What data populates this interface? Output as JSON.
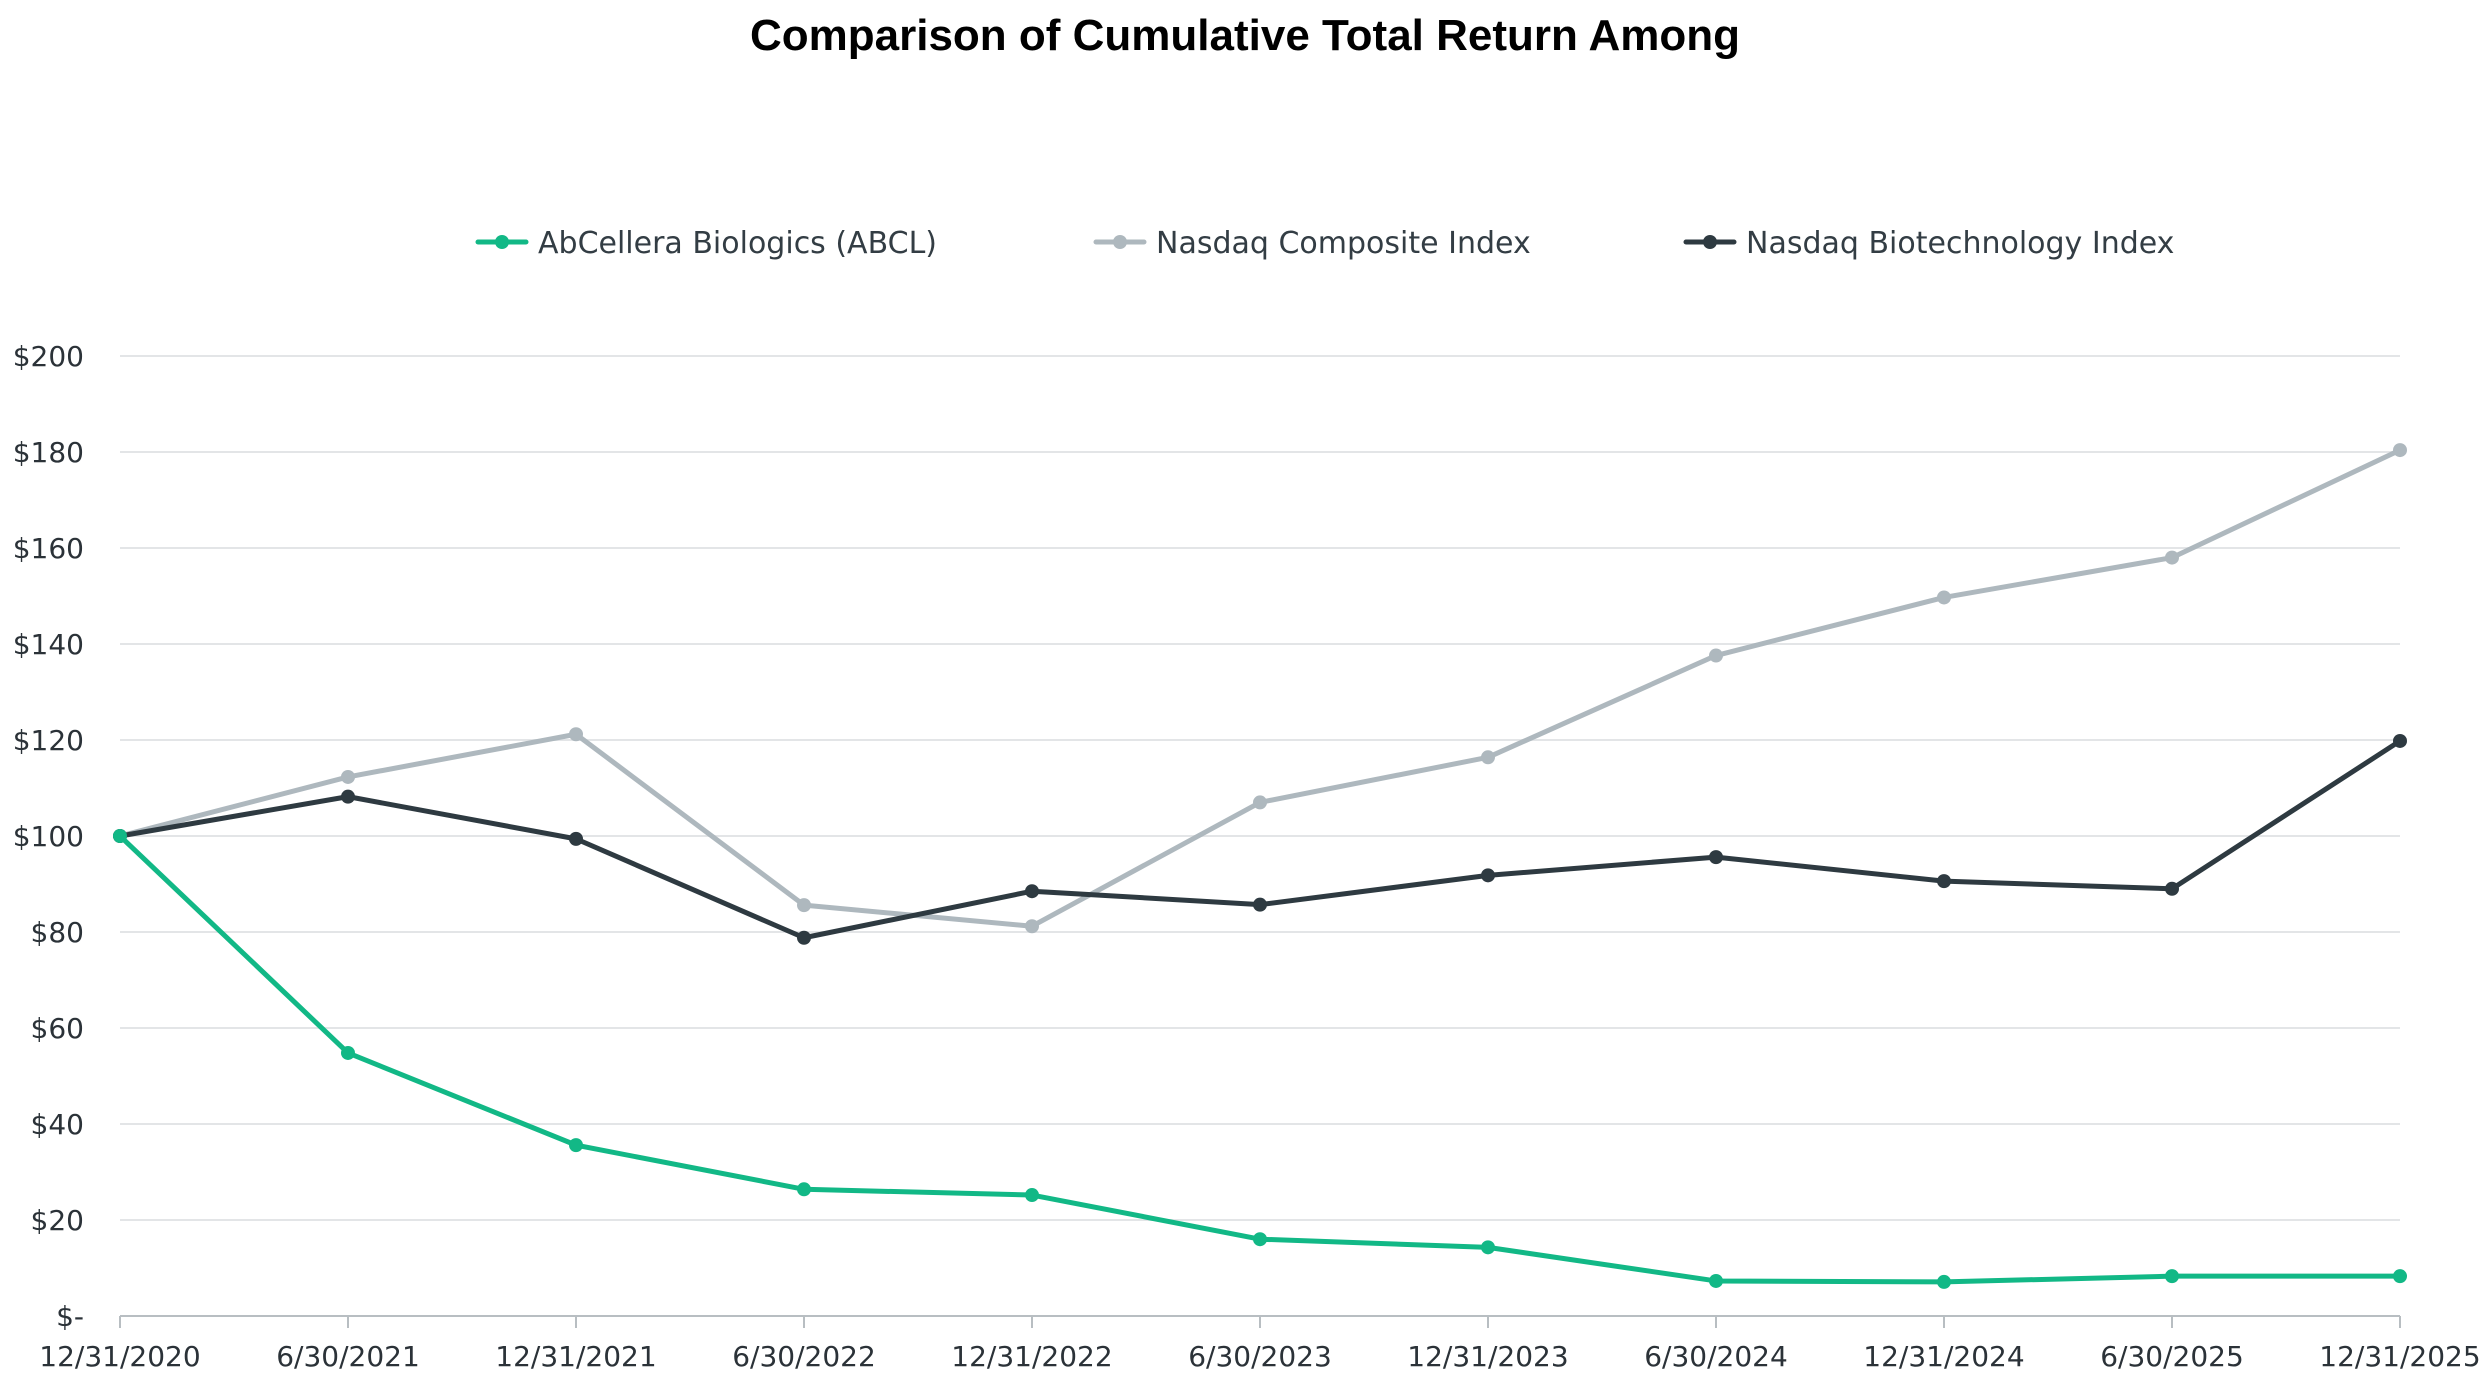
{
  "chart_data": {
    "type": "line",
    "title": "Comparison of Cumulative Total Return Among",
    "categories": [
      "12/31/2020",
      "6/30/2021",
      "12/31/2021",
      "6/30/2022",
      "12/31/2022",
      "6/30/2023",
      "12/31/2023",
      "6/30/2024",
      "12/31/2024",
      "6/30/2025",
      "12/31/2025"
    ],
    "ylim": [
      0,
      200
    ],
    "yticks": [
      0,
      20,
      40,
      60,
      80,
      100,
      120,
      140,
      160,
      180,
      200
    ],
    "ytick_labels": [
      "$-",
      "$20",
      "$40",
      "$60",
      "$80",
      "$100",
      "$120",
      "$140",
      "$160",
      "$180",
      "$200"
    ],
    "grid": true,
    "legend_position": "top-center",
    "series": [
      {
        "name": "AbCellera Biologics (ABCL)",
        "color": "#12b886",
        "values": [
          100,
          54.8,
          35.6,
          26.4,
          25.2,
          16.0,
          14.3,
          7.3,
          7.1,
          8.3,
          8.3
        ]
      },
      {
        "name": "Nasdaq Composite Index",
        "color": "#aeb8be",
        "values": [
          100,
          112.3,
          121.2,
          85.6,
          81.2,
          107.0,
          116.4,
          137.6,
          149.7,
          158.0,
          180.4
        ]
      },
      {
        "name": "Nasdaq Biotechnology Index",
        "color": "#2e3a41",
        "values": [
          100,
          108.2,
          99.4,
          78.8,
          88.5,
          85.7,
          91.8,
          95.6,
          90.6,
          89.0,
          119.8
        ]
      }
    ]
  }
}
